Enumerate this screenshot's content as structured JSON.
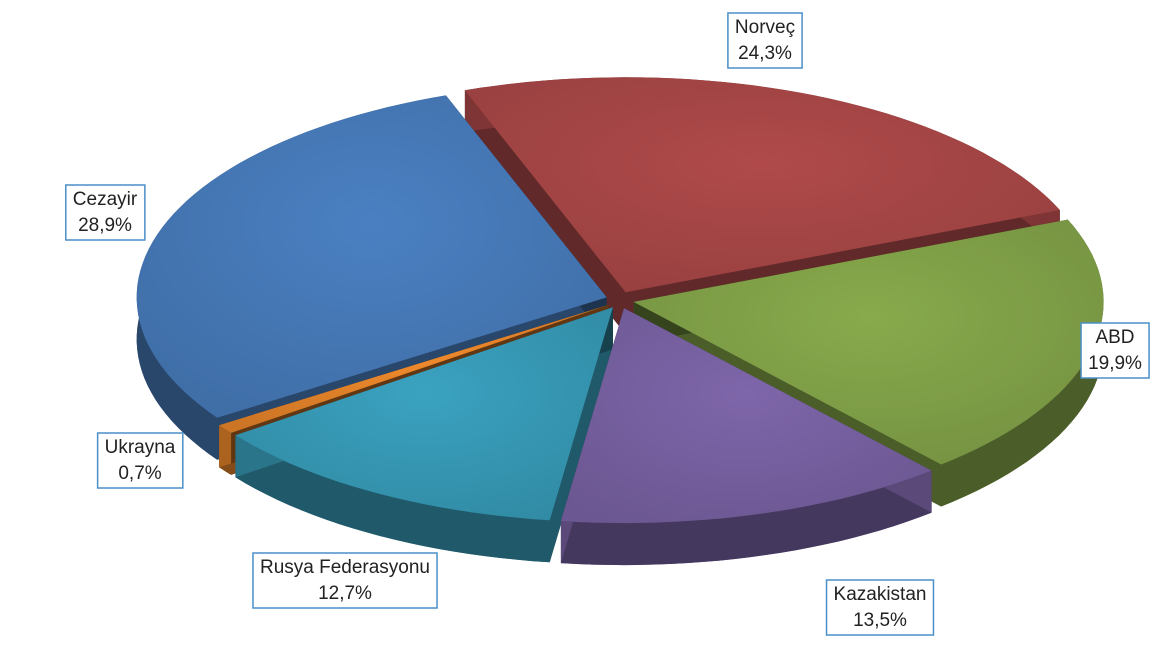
{
  "chart_data": {
    "type": "pie",
    "categories": [
      "Norveç",
      "ABD",
      "Kazakistan",
      "Rusya Federasyonu",
      "Ukrayna",
      "Cezayir"
    ],
    "values": [
      24.3,
      19.9,
      13.5,
      12.7,
      0.7,
      28.9
    ],
    "value_labels": [
      "24,3%",
      "19,9%",
      "13,5%",
      "12,7%",
      "0,7%",
      "28,9%"
    ],
    "colors": [
      "#b04a4a",
      "#88aa4c",
      "#7e66aa",
      "#3aa2c0",
      "#f08a2c",
      "#4a80c2"
    ]
  }
}
